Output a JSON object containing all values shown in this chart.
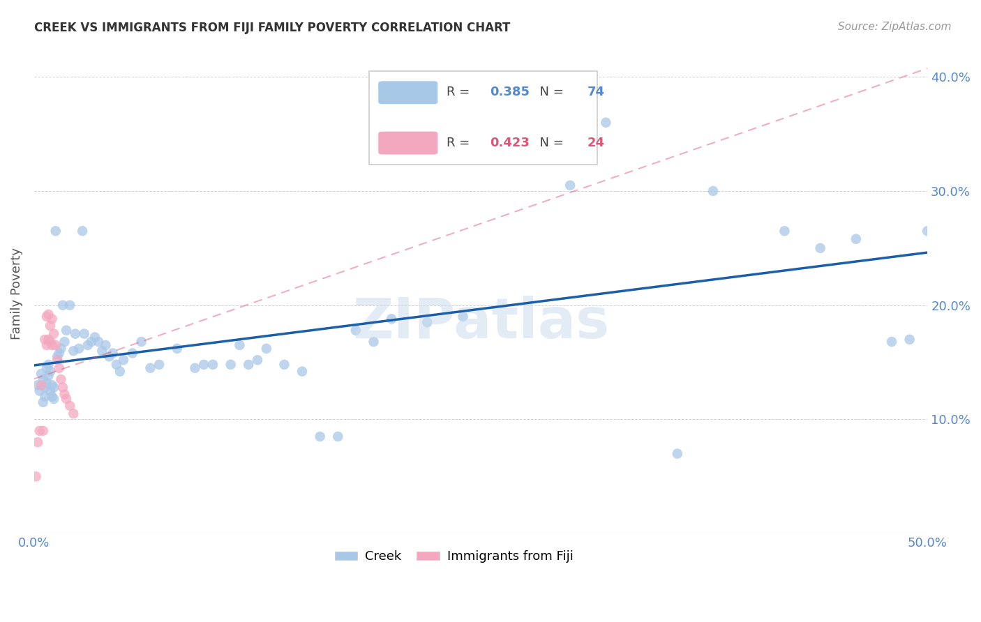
{
  "title": "CREEK VS IMMIGRANTS FROM FIJI FAMILY POVERTY CORRELATION CHART",
  "source": "Source: ZipAtlas.com",
  "ylabel": "Family Poverty",
  "xlim": [
    0.0,
    0.5
  ],
  "ylim": [
    0.0,
    0.42
  ],
  "xticks": [
    0.0,
    0.05,
    0.1,
    0.15,
    0.2,
    0.25,
    0.3,
    0.35,
    0.4,
    0.45,
    0.5
  ],
  "xticklabels_show": [
    "0.0%",
    "50.0%"
  ],
  "yticks": [
    0.0,
    0.1,
    0.2,
    0.3,
    0.4
  ],
  "yticklabels": [
    "",
    "10.0%",
    "20.0%",
    "30.0%",
    "40.0%"
  ],
  "creek_R": 0.385,
  "creek_N": 74,
  "fiji_R": 0.423,
  "fiji_N": 24,
  "creek_color": "#a8c8e8",
  "creek_line_color": "#1a5fa8",
  "fiji_color": "#f4a8c0",
  "fiji_line_color": "#e06080",
  "watermark": "ZIPatlas",
  "creek_x": [
    0.002,
    0.003,
    0.004,
    0.005,
    0.005,
    0.006,
    0.006,
    0.007,
    0.007,
    0.008,
    0.008,
    0.009,
    0.009,
    0.01,
    0.01,
    0.011,
    0.011,
    0.012,
    0.013,
    0.014,
    0.015,
    0.016,
    0.017,
    0.018,
    0.02,
    0.022,
    0.023,
    0.025,
    0.027,
    0.028,
    0.03,
    0.032,
    0.034,
    0.036,
    0.038,
    0.04,
    0.042,
    0.044,
    0.046,
    0.048,
    0.05,
    0.055,
    0.06,
    0.065,
    0.07,
    0.08,
    0.09,
    0.095,
    0.1,
    0.11,
    0.115,
    0.12,
    0.125,
    0.13,
    0.14,
    0.15,
    0.16,
    0.17,
    0.18,
    0.19,
    0.2,
    0.22,
    0.24,
    0.26,
    0.3,
    0.32,
    0.36,
    0.38,
    0.42,
    0.44,
    0.46,
    0.48,
    0.49,
    0.5
  ],
  "creek_y": [
    0.13,
    0.125,
    0.14,
    0.135,
    0.115,
    0.12,
    0.128,
    0.132,
    0.145,
    0.138,
    0.148,
    0.125,
    0.142,
    0.12,
    0.13,
    0.118,
    0.128,
    0.265,
    0.155,
    0.158,
    0.162,
    0.2,
    0.168,
    0.178,
    0.2,
    0.16,
    0.175,
    0.162,
    0.265,
    0.175,
    0.165,
    0.168,
    0.172,
    0.168,
    0.16,
    0.165,
    0.155,
    0.158,
    0.148,
    0.142,
    0.152,
    0.158,
    0.168,
    0.145,
    0.148,
    0.162,
    0.145,
    0.148,
    0.148,
    0.148,
    0.165,
    0.148,
    0.152,
    0.162,
    0.148,
    0.142,
    0.085,
    0.085,
    0.178,
    0.168,
    0.188,
    0.185,
    0.19,
    0.33,
    0.305,
    0.36,
    0.07,
    0.3,
    0.265,
    0.25,
    0.258,
    0.168,
    0.17,
    0.265
  ],
  "fiji_x": [
    0.001,
    0.002,
    0.003,
    0.004,
    0.005,
    0.006,
    0.007,
    0.007,
    0.008,
    0.008,
    0.009,
    0.009,
    0.01,
    0.01,
    0.011,
    0.012,
    0.013,
    0.014,
    0.015,
    0.016,
    0.017,
    0.018,
    0.02,
    0.022
  ],
  "fiji_y": [
    0.05,
    0.08,
    0.09,
    0.13,
    0.09,
    0.17,
    0.165,
    0.19,
    0.17,
    0.192,
    0.168,
    0.182,
    0.165,
    0.188,
    0.175,
    0.165,
    0.152,
    0.145,
    0.135,
    0.128,
    0.122,
    0.118,
    0.112,
    0.105
  ]
}
